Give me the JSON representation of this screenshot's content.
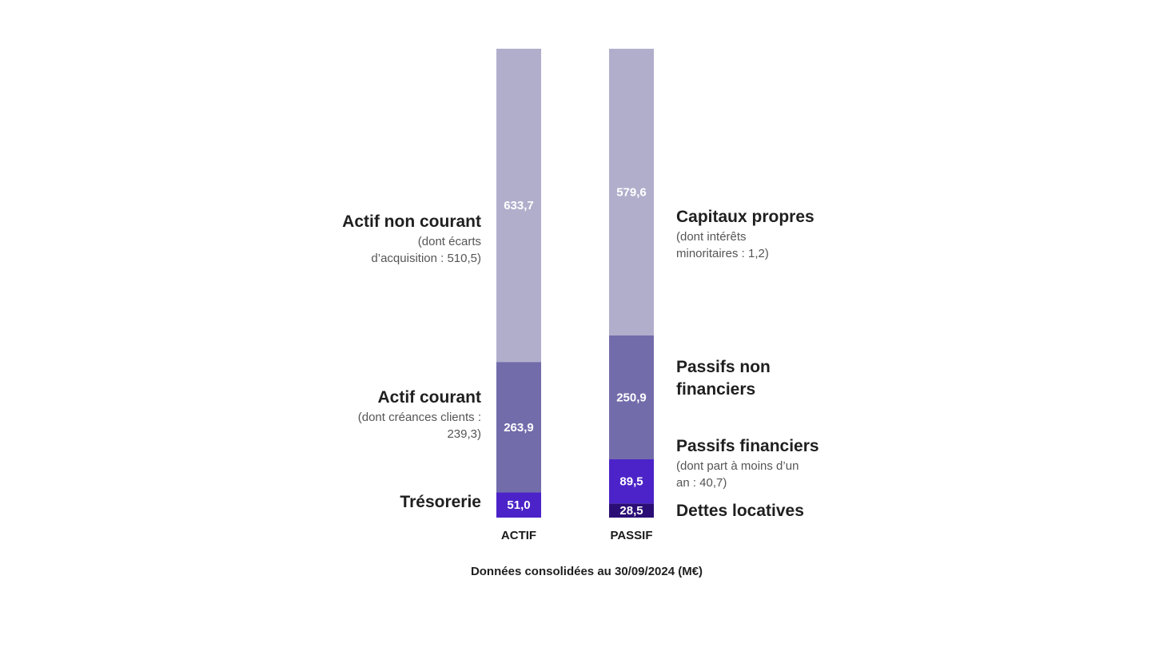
{
  "chart_data": {
    "type": "bar",
    "stacked": true,
    "categories": [
      "ACTIF",
      "PASSIF"
    ],
    "caption": "Données consolidées au 30/09/2024 (M€)",
    "stacks": [
      {
        "category": "ACTIF",
        "segments": [
          {
            "value": 51.0,
            "label": "51,0",
            "color": "#4b23c8"
          },
          {
            "value": 263.9,
            "label": "263,9",
            "color": "#736cab"
          },
          {
            "value": 633.7,
            "label": "633,7",
            "color": "#b1aecc"
          }
        ]
      },
      {
        "category": "PASSIF",
        "segments": [
          {
            "value": 28.5,
            "label": "28,5",
            "color": "#2b0e75"
          },
          {
            "value": 89.5,
            "label": "89,5",
            "color": "#4b23c8"
          },
          {
            "value": 250.9,
            "label": "250,9",
            "color": "#736cab"
          },
          {
            "value": 579.6,
            "label": "579,6",
            "color": "#b1aecc"
          }
        ]
      }
    ],
    "annotations": {
      "actif_non_courant": {
        "title": "Actif non courant",
        "sub1": "(dont écarts",
        "sub2": "d’acquisition : 510,5)"
      },
      "actif_courant": {
        "title": "Actif courant",
        "sub1": "(dont créances clients :",
        "sub2": "239,3)"
      },
      "tresorerie": {
        "title": "Trésorerie"
      },
      "capitaux_propres": {
        "title": "Capitaux propres",
        "sub1": "(dont intérêts",
        "sub2": "minoritaires : 1,2)"
      },
      "passifs_non_financiers": {
        "title1": "Passifs non",
        "title2": "financiers"
      },
      "passifs_financiers": {
        "title": "Passifs financiers",
        "sub1": "(dont part à moins d’un",
        "sub2": "an : 40,7)"
      },
      "dettes_locatives": {
        "title": "Dettes locatives"
      }
    }
  }
}
